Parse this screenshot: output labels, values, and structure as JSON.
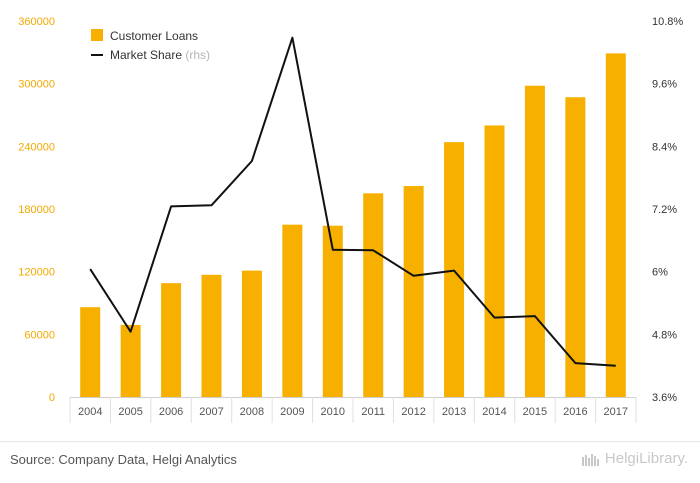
{
  "chart_data": {
    "type": "bar+line",
    "categories": [
      "2004",
      "2005",
      "2006",
      "2007",
      "2008",
      "2009",
      "2010",
      "2011",
      "2012",
      "2013",
      "2014",
      "2015",
      "2016",
      "2017"
    ],
    "series": [
      {
        "name": "Customer Loans",
        "type": "bar",
        "axis": "left",
        "color": "#f7b000",
        "values": [
          86000,
          69000,
          109000,
          117000,
          121000,
          165000,
          164000,
          195000,
          202000,
          244000,
          260000,
          298000,
          287000,
          329000
        ]
      },
      {
        "name": "Market Share",
        "type": "line",
        "axis": "right",
        "color": "#111111",
        "values": [
          6.05,
          4.85,
          7.25,
          7.27,
          8.12,
          10.48,
          6.42,
          6.41,
          5.92,
          6.02,
          5.12,
          5.15,
          4.25,
          4.2
        ]
      }
    ],
    "legend": {
      "position": "top-left",
      "items": [
        {
          "label": "Customer Loans",
          "note": ""
        },
        {
          "label": "Market Share",
          "note": "(rhs)"
        }
      ]
    },
    "left_axis": {
      "ylim": [
        0,
        360000
      ],
      "ticks": [
        0,
        60000,
        120000,
        180000,
        240000,
        300000,
        360000
      ],
      "tick_labels": [
        "0",
        "60000",
        "120000",
        "180000",
        "240000",
        "300000",
        "360000"
      ]
    },
    "right_axis": {
      "ylim": [
        3.6,
        10.8
      ],
      "ticks": [
        3.6,
        4.8,
        6,
        7.2,
        8.4,
        9.6,
        10.8
      ],
      "tick_labels": [
        "3.6%",
        "4.8%",
        "6%",
        "7.2%",
        "8.4%",
        "9.6%",
        "10.8%"
      ]
    },
    "grid": false
  },
  "footer": {
    "source": "Source: Company Data, Helgi Analytics",
    "brand": "HelgiLibrary."
  }
}
